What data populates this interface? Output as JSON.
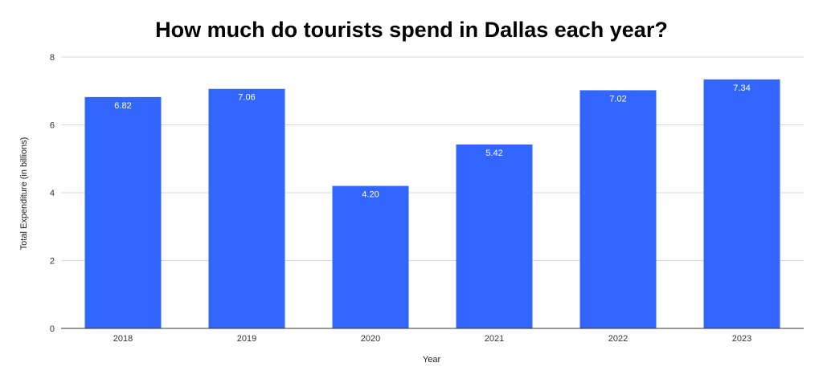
{
  "chart_data": {
    "type": "bar",
    "title": "How much do tourists spend in Dallas each year?",
    "xlabel": "Year",
    "ylabel": "Total Expenditure (in billions)",
    "categories": [
      "2018",
      "2019",
      "2020",
      "2021",
      "2022",
      "2023"
    ],
    "values": [
      6.82,
      7.06,
      4.2,
      5.42,
      7.02,
      7.34
    ],
    "data_labels": [
      "6.82",
      "7.06",
      "4.20",
      "5.42",
      "7.02",
      "7.34"
    ],
    "ylim": [
      0,
      8
    ],
    "yticks": [
      "0",
      "2",
      "4",
      "6",
      "8"
    ],
    "grid": true,
    "legend": "none",
    "colors": {
      "bar": "#3366ff",
      "grid": "#d9d9d9",
      "axis": "#333333"
    }
  }
}
